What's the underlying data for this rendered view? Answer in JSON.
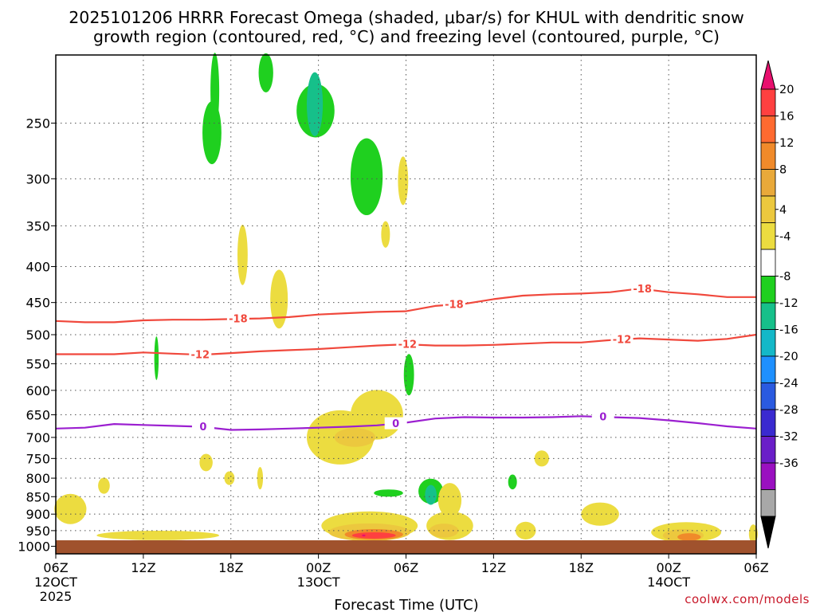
{
  "chart_data": {
    "type": "heatmap",
    "title_line1": "2025101206 HRRR Forecast Omega (shaded, μbar/s) for KHUL with dendritic snow",
    "title_line2": "growth region (contoured, red, °C) and freezing level (contoured, purple, °C)",
    "xlabel": "Forecast Time (UTC)",
    "ylabel": "",
    "credit": "coolwx.com/models",
    "x_range_hours": [
      0,
      48
    ],
    "y_range_hpa": [
      1025,
      200
    ],
    "y_ticks": [
      {
        "value": 250,
        "label": "250"
      },
      {
        "value": 300,
        "label": "300"
      },
      {
        "value": 350,
        "label": "350"
      },
      {
        "value": 400,
        "label": "400"
      },
      {
        "value": 450,
        "label": "450"
      },
      {
        "value": 500,
        "label": "500"
      },
      {
        "value": 550,
        "label": "550"
      },
      {
        "value": 600,
        "label": "600"
      },
      {
        "value": 650,
        "label": "650"
      },
      {
        "value": 700,
        "label": "700"
      },
      {
        "value": 750,
        "label": "750"
      },
      {
        "value": 800,
        "label": "800"
      },
      {
        "value": 850,
        "label": "850"
      },
      {
        "value": 900,
        "label": "900"
      },
      {
        "value": 950,
        "label": "950"
      },
      {
        "value": 1000,
        "label": "1000"
      }
    ],
    "x_ticks": [
      {
        "hour": 0,
        "lines": [
          "06Z",
          "12OCT",
          "2025"
        ]
      },
      {
        "hour": 6,
        "lines": [
          "12Z"
        ]
      },
      {
        "hour": 12,
        "lines": [
          "18Z"
        ]
      },
      {
        "hour": 18,
        "lines": [
          "00Z",
          "13OCT"
        ]
      },
      {
        "hour": 24,
        "lines": [
          "06Z"
        ]
      },
      {
        "hour": 30,
        "lines": [
          "12Z"
        ]
      },
      {
        "hour": 36,
        "lines": [
          "18Z"
        ]
      },
      {
        "hour": 42,
        "lines": [
          "00Z",
          "14OCT"
        ]
      },
      {
        "hour": 48,
        "lines": [
          "06Z"
        ]
      }
    ],
    "colorbar": {
      "labels": [
        "20",
        "16",
        "12",
        "8",
        "4",
        "-4",
        "-8",
        "-12",
        "-16",
        "-20",
        "-24",
        "-28",
        "-32",
        "-36"
      ],
      "colors": [
        "#e8106e",
        "#ff4040",
        "#ff6a30",
        "#f08a2a",
        "#e9a93a",
        "#ecc83e",
        "#ecdc40",
        "#ffffff",
        "#1fd01f",
        "#16c08a",
        "#14b8c8",
        "#1e90ff",
        "#2a5ae0",
        "#3a2ad0",
        "#6a1ec8",
        "#9a10c0",
        "#a8a8a8",
        "#000000"
      ]
    },
    "terrain": {
      "pressure_hpa": 1010,
      "color": "#a0522d"
    },
    "contours": [
      {
        "name": "dgz-18",
        "color": "#f0483c",
        "label": "-18",
        "hours": [
          0,
          2,
          4,
          6,
          8,
          10,
          12,
          14,
          16,
          18,
          20,
          22,
          24,
          26,
          28,
          30,
          32,
          34,
          36,
          38,
          40,
          42,
          44,
          46,
          48
        ],
        "hpa": [
          478,
          480,
          480,
          477,
          476,
          476,
          475,
          474,
          472,
          468,
          466,
          464,
          463,
          455,
          452,
          445,
          440,
          438,
          437,
          435,
          430,
          435,
          438,
          442,
          442
        ],
        "label_hours": [
          12.5,
          27.3,
          40.2
        ]
      },
      {
        "name": "dgz-12",
        "color": "#f0483c",
        "label": "-12",
        "hours": [
          0,
          2,
          4,
          6,
          8,
          10,
          12,
          14,
          16,
          18,
          20,
          22,
          24,
          26,
          28,
          30,
          32,
          34,
          36,
          38,
          40,
          42,
          44,
          46,
          48
        ],
        "hpa": [
          533,
          533,
          533,
          530,
          532,
          534,
          531,
          528,
          526,
          524,
          521,
          518,
          516,
          518,
          518,
          517,
          515,
          513,
          513,
          509,
          506,
          508,
          510,
          507,
          500
        ],
        "label_hours": [
          9.9,
          24.1,
          38.8
        ]
      },
      {
        "name": "freezing-0",
        "color": "#9b1fd0",
        "label": "0",
        "hours": [
          0,
          2,
          4,
          6,
          8,
          10,
          12,
          14,
          16,
          18,
          20,
          22,
          24,
          26,
          28,
          30,
          32,
          34,
          36,
          38,
          40,
          42,
          44,
          46,
          48
        ],
        "hpa": [
          680,
          678,
          670,
          672,
          674,
          676,
          683,
          682,
          680,
          678,
          676,
          673,
          667,
          658,
          655,
          656,
          656,
          655,
          653,
          655,
          657,
          662,
          668,
          675,
          680
        ],
        "label_hours": [
          10.1,
          23.3,
          37.5
        ]
      }
    ],
    "omega_regions": [
      {
        "value": -8,
        "h": 10.7,
        "p": 258,
        "dh": 0.65,
        "dp": 28
      },
      {
        "value": -8,
        "h": 10.9,
        "p": 225,
        "dh": 0.3,
        "dp": 30
      },
      {
        "value": -8,
        "h": 14.4,
        "p": 212,
        "dh": 0.5,
        "dp": 14
      },
      {
        "value": -8,
        "h": 17.8,
        "p": 240,
        "dh": 1.3,
        "dp": 22
      },
      {
        "value": -12,
        "h": 17.75,
        "p": 235,
        "dh": 0.55,
        "dp": 26
      },
      {
        "value": -8,
        "h": 21.3,
        "p": 298,
        "dh": 1.1,
        "dp": 40
      },
      {
        "value": 4,
        "h": 23.8,
        "p": 302,
        "dh": 0.35,
        "dp": 25
      },
      {
        "value": 4,
        "h": 22.6,
        "p": 360,
        "dh": 0.3,
        "dp": 16
      },
      {
        "value": 4,
        "h": 12.8,
        "p": 385,
        "dh": 0.35,
        "dp": 40
      },
      {
        "value": 4,
        "h": 15.3,
        "p": 445,
        "dh": 0.6,
        "dp": 45
      },
      {
        "value": -8,
        "h": 6.9,
        "p": 540,
        "dh": 0.15,
        "dp": 40
      },
      {
        "value": -8,
        "h": 24.2,
        "p": 570,
        "dh": 0.35,
        "dp": 40
      },
      {
        "value": 4,
        "h": 22.0,
        "p": 650,
        "dh": 1.8,
        "dp": 55
      },
      {
        "value": 4,
        "h": 19.5,
        "p": 700,
        "dh": 2.3,
        "dp": 65
      },
      {
        "value": 8,
        "h": 20.5,
        "p": 700,
        "dh": 1.4,
        "dp": 22
      },
      {
        "value": 4,
        "h": 10.3,
        "p": 760,
        "dh": 0.45,
        "dp": 22
      },
      {
        "value": 4,
        "h": 11.9,
        "p": 800,
        "dh": 0.35,
        "dp": 18
      },
      {
        "value": 4,
        "h": 14.0,
        "p": 800,
        "dh": 0.2,
        "dp": 30
      },
      {
        "value": 4,
        "h": 3.3,
        "p": 820,
        "dh": 0.4,
        "dp": 22
      },
      {
        "value": 4,
        "h": 33.3,
        "p": 750,
        "dh": 0.5,
        "dp": 20
      },
      {
        "value": -8,
        "h": 31.3,
        "p": 810,
        "dh": 0.3,
        "dp": 20
      },
      {
        "value": -8,
        "h": 22.8,
        "p": 840,
        "dh": 1.0,
        "dp": 10
      },
      {
        "value": -8,
        "h": 25.7,
        "p": 835,
        "dh": 0.85,
        "dp": 35
      },
      {
        "value": -12,
        "h": 25.7,
        "p": 845,
        "dh": 0.4,
        "dp": 28
      },
      {
        "value": 4,
        "h": 27.0,
        "p": 860,
        "dh": 0.8,
        "dp": 50
      },
      {
        "value": 4,
        "h": 1.0,
        "p": 885,
        "dh": 1.1,
        "dp": 45
      },
      {
        "value": 4,
        "h": 21.5,
        "p": 935,
        "dh": 3.3,
        "dp": 45
      },
      {
        "value": 8,
        "h": 21.5,
        "p": 955,
        "dh": 2.8,
        "dp": 28
      },
      {
        "value": 12,
        "h": 21.8,
        "p": 962,
        "dh": 2.0,
        "dp": 17
      },
      {
        "value": 16,
        "h": 21.8,
        "p": 965,
        "dh": 1.5,
        "dp": 10
      },
      {
        "value": 20,
        "h": 21.1,
        "p": 965,
        "dh": 0.12,
        "dp": 3
      },
      {
        "value": 4,
        "h": 27.0,
        "p": 935,
        "dh": 1.6,
        "dp": 45
      },
      {
        "value": 8,
        "h": 26.6,
        "p": 950,
        "dh": 1.0,
        "dp": 22
      },
      {
        "value": 4,
        "h": 7.0,
        "p": 965,
        "dh": 4.2,
        "dp": 15
      },
      {
        "value": 4,
        "h": 32.2,
        "p": 950,
        "dh": 0.7,
        "dp": 28
      },
      {
        "value": 4,
        "h": 37.3,
        "p": 900,
        "dh": 1.3,
        "dp": 35
      },
      {
        "value": 4,
        "h": 43.2,
        "p": 955,
        "dh": 2.4,
        "dp": 32
      },
      {
        "value": 8,
        "h": 43.0,
        "p": 965,
        "dh": 1.4,
        "dp": 20
      },
      {
        "value": 12,
        "h": 43.4,
        "p": 970,
        "dh": 0.8,
        "dp": 12
      },
      {
        "value": 4,
        "h": 47.8,
        "p": 960,
        "dh": 0.3,
        "dp": 30
      }
    ]
  }
}
